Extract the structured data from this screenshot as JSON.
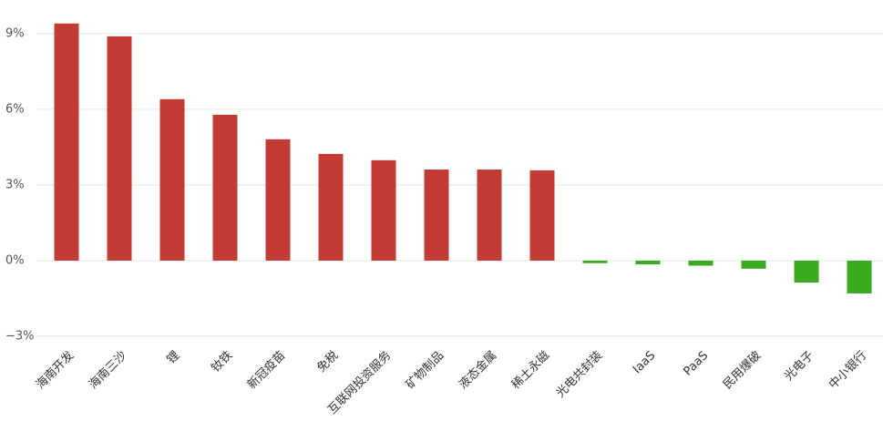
{
  "chart_data": {
    "type": "bar",
    "categories": [
      "海南开发",
      "海南三沙",
      "锂",
      "钕铁",
      "新冠疫苗",
      "免税",
      "互联网投资服务",
      "矿物制品",
      "液态金属",
      "稀土永磁",
      "光电共封装",
      "IaaS",
      "PaaS",
      "民用爆破",
      "光电子",
      "中小银行"
    ],
    "values": [
      9.4,
      8.89,
      6.4,
      5.78,
      4.81,
      4.23,
      3.98,
      3.61,
      3.61,
      3.58,
      -0.1,
      -0.15,
      -0.2,
      -0.32,
      -0.87,
      -1.3
    ],
    "positive_color": "#c23c33",
    "negative_color": "#3aaa1e",
    "ylim": [
      -3,
      9.5
    ],
    "yticks": [
      {
        "value": -3,
        "label": "−3%"
      },
      {
        "value": 0,
        "label": "0%"
      },
      {
        "value": 3,
        "label": "3%"
      },
      {
        "value": 6,
        "label": "6%"
      },
      {
        "value": 9,
        "label": "9%"
      }
    ],
    "grid": true
  }
}
